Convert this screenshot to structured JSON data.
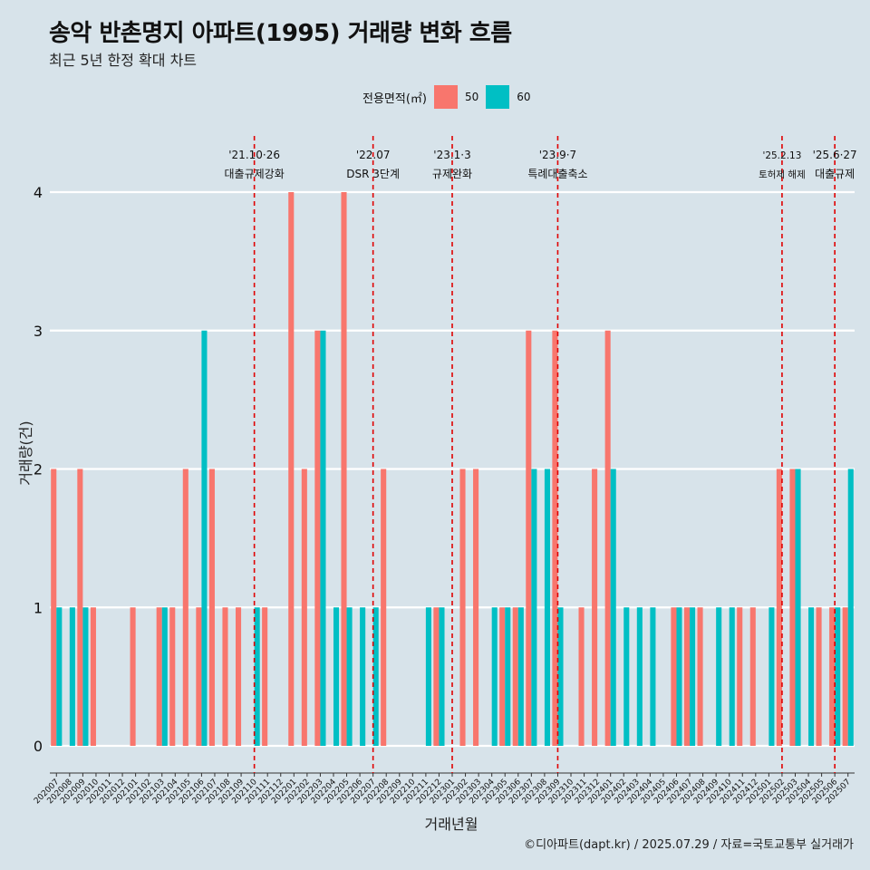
{
  "header": {
    "title": "송악 반촌명지 아파트(1995) 거래량 변화 흐름",
    "subtitle": "최근 5년 한정 확대 차트"
  },
  "legend": {
    "title": "전용면적(㎡)",
    "items": [
      {
        "label": "50",
        "color": "#F8766D"
      },
      {
        "label": "60",
        "color": "#00BFC4"
      }
    ]
  },
  "caption": "©디아파트(dapt.kr) / 2025.07.29 / 자료=국토교통부 실거래가",
  "chart_data": {
    "type": "bar",
    "xlabel": "거래년월",
    "ylabel": "거래량(건)",
    "ylim": [
      0,
      4
    ],
    "yticks": [
      0,
      1,
      2,
      3,
      4
    ],
    "grid": true,
    "legend_position": "top",
    "categories": [
      "202007",
      "202008",
      "202009",
      "202010",
      "202011",
      "202012",
      "202101",
      "202102",
      "202103",
      "202104",
      "202105",
      "202106",
      "202107",
      "202108",
      "202109",
      "202110",
      "202111",
      "202112",
      "202201",
      "202202",
      "202203",
      "202204",
      "202205",
      "202206",
      "202207",
      "202208",
      "202209",
      "202210",
      "202211",
      "202212",
      "202301",
      "202302",
      "202303",
      "202304",
      "202305",
      "202306",
      "202307",
      "202308",
      "202309",
      "202310",
      "202311",
      "202312",
      "202401",
      "202402",
      "202403",
      "202404",
      "202405",
      "202406",
      "202407",
      "202408",
      "202409",
      "202410",
      "202411",
      "202412",
      "202501",
      "202502",
      "202503",
      "202504",
      "202505",
      "202506",
      "202507"
    ],
    "series": [
      {
        "name": "50",
        "color": "#F8766D",
        "values": [
          2,
          0,
          2,
          1,
          0,
          0,
          1,
          0,
          1,
          1,
          2,
          1,
          2,
          1,
          1,
          0,
          1,
          0,
          4,
          2,
          3,
          0,
          4,
          0,
          0,
          2,
          0,
          0,
          0,
          1,
          0,
          2,
          2,
          0,
          1,
          1,
          3,
          0,
          3,
          0,
          1,
          2,
          3,
          0,
          0,
          0,
          0,
          1,
          1,
          1,
          0,
          0,
          1,
          1,
          0,
          2,
          2,
          0,
          1,
          1,
          1
        ]
      },
      {
        "name": "60",
        "color": "#00BFC4",
        "values": [
          1,
          1,
          1,
          0,
          0,
          0,
          0,
          0,
          1,
          0,
          0,
          3,
          0,
          0,
          0,
          1,
          0,
          0,
          0,
          0,
          3,
          1,
          1,
          1,
          1,
          0,
          0,
          0,
          1,
          1,
          0,
          0,
          0,
          1,
          1,
          1,
          2,
          2,
          1,
          0,
          0,
          0,
          2,
          1,
          1,
          1,
          0,
          1,
          1,
          0,
          1,
          1,
          0,
          0,
          1,
          0,
          2,
          1,
          0,
          1,
          2
        ]
      }
    ],
    "annotations": [
      {
        "date": "'21.10·26",
        "label": "대출규제강화",
        "at": "202110"
      },
      {
        "date": "'22.07",
        "label": "DSR 3단계",
        "at": "202207"
      },
      {
        "date": "'23.1·3",
        "label": "규제완화",
        "at": "202301"
      },
      {
        "date": "'23.9·7",
        "label": "특례대출축소",
        "at": "202309"
      },
      {
        "date": "'25.2.13",
        "label": "토허제 해제",
        "at": "202502"
      },
      {
        "date": "'25.6·27",
        "label": "대출규제",
        "at": "202506"
      }
    ]
  }
}
